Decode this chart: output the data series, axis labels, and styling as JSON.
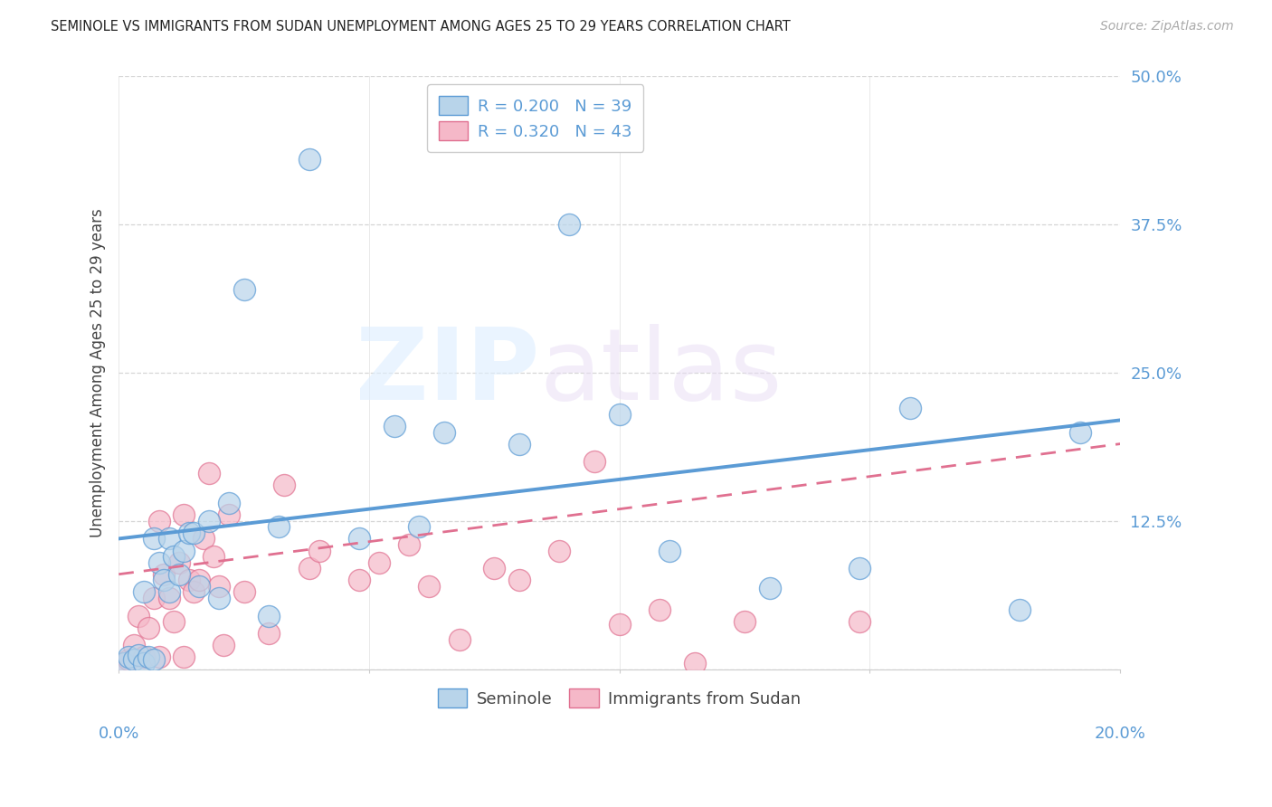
{
  "title": "SEMINOLE VS IMMIGRANTS FROM SUDAN UNEMPLOYMENT AMONG AGES 25 TO 29 YEARS CORRELATION CHART",
  "source": "Source: ZipAtlas.com",
  "ylabel": "Unemployment Among Ages 25 to 29 years",
  "yticks": [
    0.0,
    0.125,
    0.25,
    0.375,
    0.5
  ],
  "ytick_labels": [
    "",
    "12.5%",
    "25.0%",
    "37.5%",
    "50.0%"
  ],
  "xtick_labels": [
    "0.0%",
    "",
    "",
    "",
    "20.0%"
  ],
  "xlim": [
    0.0,
    0.2
  ],
  "ylim": [
    0.0,
    0.5
  ],
  "seminole_R": 0.2,
  "seminole_N": 39,
  "sudan_R": 0.32,
  "sudan_N": 43,
  "seminole_color": "#b8d4ea",
  "sudan_color": "#f5b8c8",
  "seminole_line_color": "#5b9bd5",
  "sudan_line_color": "#e07090",
  "seminole_points_x": [
    0.001,
    0.002,
    0.003,
    0.004,
    0.005,
    0.005,
    0.006,
    0.007,
    0.007,
    0.008,
    0.009,
    0.01,
    0.01,
    0.011,
    0.012,
    0.013,
    0.014,
    0.015,
    0.016,
    0.018,
    0.02,
    0.022,
    0.025,
    0.03,
    0.032,
    0.038,
    0.048,
    0.055,
    0.06,
    0.065,
    0.08,
    0.09,
    0.1,
    0.11,
    0.13,
    0.148,
    0.158,
    0.18,
    0.192
  ],
  "seminole_points_y": [
    0.005,
    0.01,
    0.008,
    0.012,
    0.005,
    0.065,
    0.01,
    0.008,
    0.11,
    0.09,
    0.075,
    0.11,
    0.065,
    0.095,
    0.08,
    0.1,
    0.115,
    0.115,
    0.07,
    0.125,
    0.06,
    0.14,
    0.32,
    0.045,
    0.12,
    0.43,
    0.11,
    0.205,
    0.12,
    0.2,
    0.19,
    0.375,
    0.215,
    0.1,
    0.068,
    0.085,
    0.22,
    0.05,
    0.2
  ],
  "sudan_points_x": [
    0.001,
    0.002,
    0.003,
    0.004,
    0.005,
    0.006,
    0.007,
    0.008,
    0.008,
    0.009,
    0.01,
    0.011,
    0.012,
    0.013,
    0.013,
    0.014,
    0.015,
    0.016,
    0.017,
    0.018,
    0.019,
    0.02,
    0.021,
    0.022,
    0.025,
    0.03,
    0.033,
    0.038,
    0.04,
    0.048,
    0.052,
    0.058,
    0.062,
    0.068,
    0.075,
    0.08,
    0.088,
    0.095,
    0.1,
    0.108,
    0.115,
    0.125,
    0.148
  ],
  "sudan_points_y": [
    0.005,
    0.008,
    0.02,
    0.045,
    0.01,
    0.035,
    0.06,
    0.01,
    0.125,
    0.08,
    0.06,
    0.04,
    0.09,
    0.01,
    0.13,
    0.075,
    0.065,
    0.075,
    0.11,
    0.165,
    0.095,
    0.07,
    0.02,
    0.13,
    0.065,
    0.03,
    0.155,
    0.085,
    0.1,
    0.075,
    0.09,
    0.105,
    0.07,
    0.025,
    0.085,
    0.075,
    0.1,
    0.175,
    0.038,
    0.05,
    0.005,
    0.04,
    0.04
  ],
  "background_color": "#ffffff",
  "grid_color": "#cccccc"
}
